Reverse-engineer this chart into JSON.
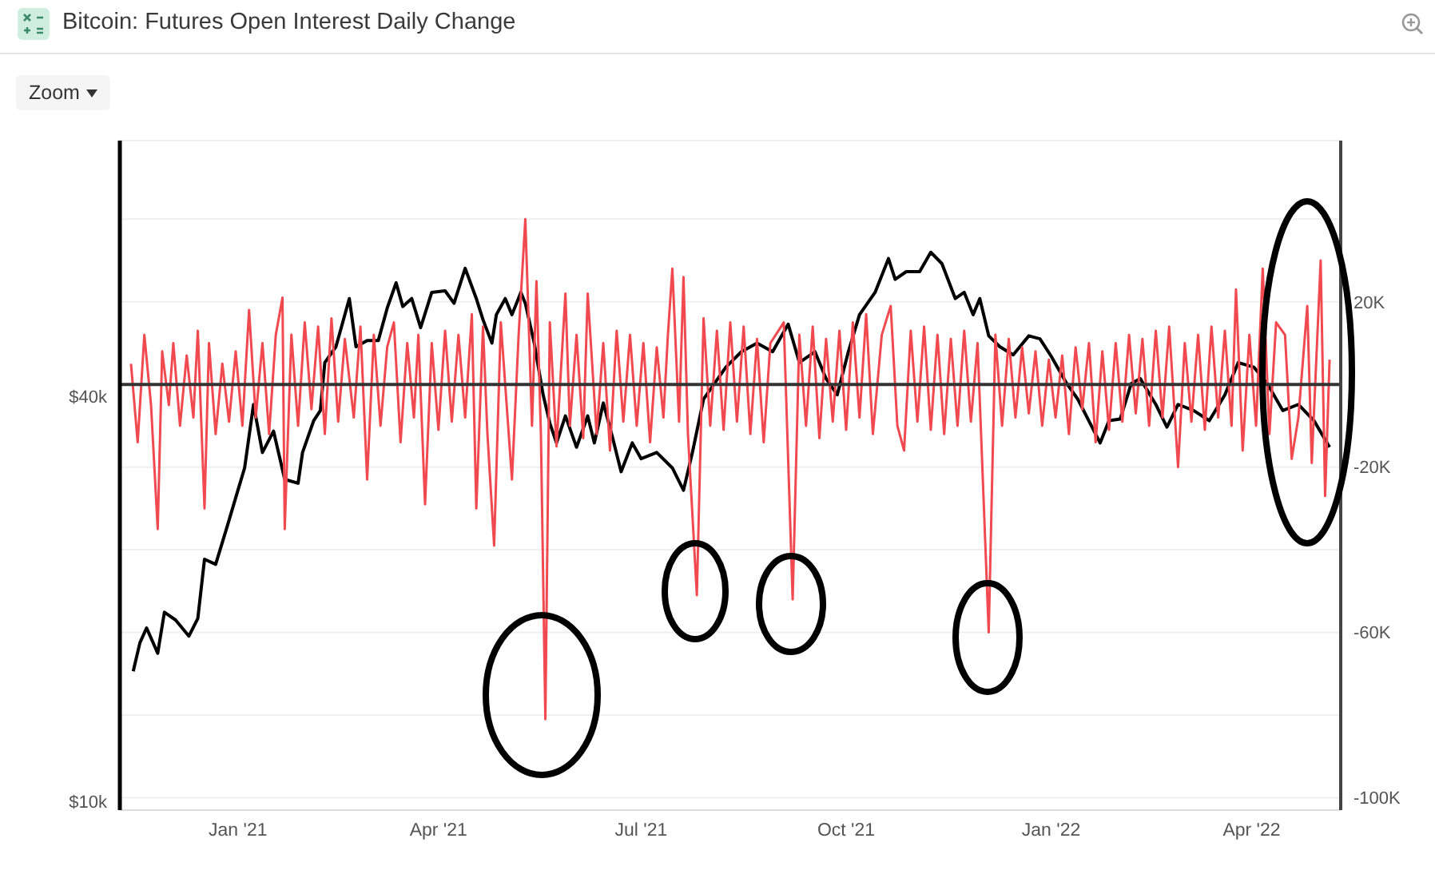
{
  "chart_data": {
    "type": "line",
    "title": "Bitcoin: Futures Open Interest Daily Change",
    "annotations": [
      "Zoom"
    ],
    "xlim": [
      "2020-11-09",
      "2022-05-11"
    ],
    "xticks": [
      {
        "value": "2021-01-01",
        "label": "Jan '21"
      },
      {
        "value": "2021-04-01",
        "label": "Apr '21"
      },
      {
        "value": "2021-07-01",
        "label": "Jul '21"
      },
      {
        "value": "2021-10-01",
        "label": "Oct '21"
      },
      {
        "value": "2022-01-01",
        "label": "Jan '22"
      },
      {
        "value": "2022-04-01",
        "label": "Apr '22"
      }
    ],
    "log": "y",
    "ylim": [
      9700,
      96000
    ],
    "yticks": [
      {
        "value": 10000,
        "label": "$10k"
      },
      {
        "value": 40000,
        "label": "$40k"
      }
    ],
    "y2lim": [
      -103000,
      59000
    ],
    "y2ticks": [
      {
        "value": 40000,
        "label": null
      },
      {
        "value": 20000,
        "label": "20K"
      },
      {
        "value": 0,
        "label": null
      },
      {
        "value": -20000,
        "label": "-20K"
      },
      {
        "value": -40000,
        "label": null
      },
      {
        "value": -60000,
        "label": "-60K"
      },
      {
        "value": -80000,
        "label": null
      },
      {
        "value": -100000,
        "label": "-100K"
      }
    ],
    "grid": "y",
    "marker": "none",
    "ref_lines": [
      {
        "axis": "y2",
        "value": 0,
        "color": "#333333"
      }
    ],
    "series": [
      {
        "color": "#000000",
        "x": [
          "2020-11-15",
          "2020-11-18",
          "2020-11-21",
          "2020-11-26",
          "2020-11-29",
          "2020-12-04",
          "2020-12-10",
          "2020-12-14",
          "2020-12-17",
          "2020-12-22",
          "2020-12-27",
          "2021-01-01",
          "2021-01-04",
          "2021-01-08",
          "2021-01-12",
          "2021-01-17",
          "2021-01-22",
          "2021-01-28",
          "2021-01-30",
          "2021-02-04",
          "2021-02-07",
          "2021-02-09",
          "2021-02-14",
          "2021-02-20",
          "2021-02-23",
          "2021-02-28",
          "2021-03-05",
          "2021-03-09",
          "2021-03-13",
          "2021-03-16",
          "2021-03-20",
          "2021-03-24",
          "2021-03-29",
          "2021-04-04",
          "2021-04-08",
          "2021-04-13",
          "2021-04-18",
          "2021-04-21",
          "2021-04-25",
          "2021-04-27",
          "2021-05-01",
          "2021-05-04",
          "2021-05-08",
          "2021-05-10",
          "2021-05-14",
          "2021-05-18",
          "2021-05-21",
          "2021-05-24",
          "2021-05-28",
          "2021-06-02",
          "2021-06-07",
          "2021-06-10",
          "2021-06-14",
          "2021-06-18",
          "2021-06-22",
          "2021-06-27",
          "2021-07-01",
          "2021-07-08",
          "2021-07-15",
          "2021-07-20",
          "2021-07-24",
          "2021-07-29",
          "2021-08-08",
          "2021-08-15",
          "2021-08-22",
          "2021-08-29",
          "2021-09-05",
          "2021-09-10",
          "2021-09-17",
          "2021-09-22",
          "2021-09-27",
          "2021-10-02",
          "2021-10-07",
          "2021-10-14",
          "2021-10-20",
          "2021-10-23",
          "2021-10-28",
          "2021-11-03",
          "2021-11-08",
          "2021-11-13",
          "2021-11-19",
          "2021-11-23",
          "2021-11-27",
          "2021-11-30",
          "2021-12-04",
          "2021-12-09",
          "2021-12-15",
          "2021-12-22",
          "2021-12-27",
          "2022-01-01",
          "2022-01-08",
          "2022-01-13",
          "2022-01-23",
          "2022-01-27",
          "2022-02-01",
          "2022-02-06",
          "2022-02-10",
          "2022-02-17",
          "2022-02-22",
          "2022-02-27",
          "2022-03-06",
          "2022-03-13",
          "2022-03-20",
          "2022-03-26",
          "2022-04-02",
          "2022-04-08",
          "2022-04-15",
          "2022-04-22",
          "2022-04-29",
          "2022-05-06"
        ],
        "values": [
          15600,
          17200,
          18100,
          16600,
          19100,
          18600,
          17600,
          18700,
          22900,
          22500,
          25500,
          29000,
          31300,
          38900,
          33000,
          35500,
          30100,
          29700,
          33000,
          36800,
          38100,
          44900,
          47400,
          55900,
          47400,
          48400,
          48400,
          54100,
          59000,
          54400,
          55900,
          50600,
          57100,
          57400,
          55000,
          62000,
          55900,
          52000,
          48000,
          52900,
          55900,
          52900,
          57100,
          55000,
          48000,
          40200,
          36500,
          34100,
          37400,
          33600,
          37400,
          34100,
          39100,
          34900,
          30900,
          34100,
          32300,
          33000,
          31300,
          29000,
          33000,
          39600,
          44200,
          46600,
          48000,
          46600,
          51200,
          44900,
          46600,
          42500,
          40200,
          46600,
          52900,
          57100,
          64100,
          59700,
          61300,
          61300,
          65500,
          63000,
          55900,
          57100,
          52900,
          55900,
          49200,
          47400,
          46100,
          49200,
          48700,
          45900,
          41800,
          39600,
          34100,
          36800,
          37000,
          41800,
          42500,
          38900,
          36000,
          38900,
          38100,
          36800,
          40200,
          44900,
          44200,
          41800,
          38100,
          38900,
          36800,
          33600
        ]
      },
      {
        "axis": "y2",
        "color": "#f0494f",
        "x": [
          "2020-11-14",
          "2020-11-17",
          "2020-11-20",
          "2020-11-23",
          "2020-11-26",
          "2020-11-28",
          "2020-12-01",
          "2020-12-03",
          "2020-12-06",
          "2020-12-09",
          "2020-12-12",
          "2020-12-14",
          "2020-12-17",
          "2020-12-19",
          "2020-12-22",
          "2020-12-25",
          "2020-12-28",
          "2020-12-31",
          "2021-01-03",
          "2021-01-06",
          "2021-01-09",
          "2021-01-12",
          "2021-01-15",
          "2021-01-18",
          "2021-01-21",
          "2021-01-22",
          "2021-01-25",
          "2021-01-28",
          "2021-01-31",
          "2021-02-03",
          "2021-02-06",
          "2021-02-09",
          "2021-02-12",
          "2021-02-15",
          "2021-02-18",
          "2021-02-22",
          "2021-02-25",
          "2021-02-28",
          "2021-03-03",
          "2021-03-06",
          "2021-03-09",
          "2021-03-12",
          "2021-03-15",
          "2021-03-18",
          "2021-03-21",
          "2021-03-23",
          "2021-03-26",
          "2021-03-29",
          "2021-04-01",
          "2021-04-04",
          "2021-04-07",
          "2021-04-10",
          "2021-04-13",
          "2021-04-16",
          "2021-04-18",
          "2021-04-21",
          "2021-04-23",
          "2021-04-26",
          "2021-04-29",
          "2021-05-04",
          "2021-05-07",
          "2021-05-10",
          "2021-05-13",
          "2021-05-15",
          "2021-05-17",
          "2021-05-19",
          "2021-05-21",
          "2021-05-24",
          "2021-05-28",
          "2021-05-30",
          "2021-06-02",
          "2021-06-05",
          "2021-06-07",
          "2021-06-11",
          "2021-06-14",
          "2021-06-17",
          "2021-06-20",
          "2021-06-23",
          "2021-06-26",
          "2021-06-29",
          "2021-07-02",
          "2021-07-05",
          "2021-07-08",
          "2021-07-11",
          "2021-07-13",
          "2021-07-15",
          "2021-07-18",
          "2021-07-20",
          "2021-07-22",
          "2021-07-26",
          "2021-07-29",
          "2021-08-01",
          "2021-08-04",
          "2021-08-07",
          "2021-08-10",
          "2021-08-13",
          "2021-08-16",
          "2021-08-19",
          "2021-08-22",
          "2021-08-25",
          "2021-08-28",
          "2021-09-03",
          "2021-09-07",
          "2021-09-10",
          "2021-09-13",
          "2021-09-16",
          "2021-09-19",
          "2021-09-22",
          "2021-09-25",
          "2021-09-28",
          "2021-10-01",
          "2021-10-04",
          "2021-10-07",
          "2021-10-10",
          "2021-10-13",
          "2021-10-17",
          "2021-10-21",
          "2021-10-24",
          "2021-10-27",
          "2021-10-30",
          "2021-11-02",
          "2021-11-05",
          "2021-11-08",
          "2021-11-11",
          "2021-11-14",
          "2021-11-17",
          "2021-11-20",
          "2021-11-23",
          "2021-11-26",
          "2021-11-29",
          "2021-12-04",
          "2021-12-07",
          "2021-12-10",
          "2021-12-13",
          "2021-12-16",
          "2021-12-19",
          "2021-12-22",
          "2021-12-25",
          "2021-12-28",
          "2021-12-31",
          "2022-01-03",
          "2022-01-06",
          "2022-01-09",
          "2022-01-12",
          "2022-01-15",
          "2022-01-18",
          "2022-01-21",
          "2022-01-24",
          "2022-01-27",
          "2022-01-30",
          "2022-02-02",
          "2022-02-05",
          "2022-02-08",
          "2022-02-11",
          "2022-02-14",
          "2022-02-17",
          "2022-02-20",
          "2022-02-23",
          "2022-02-27",
          "2022-03-02",
          "2022-03-05",
          "2022-03-08",
          "2022-03-11",
          "2022-03-14",
          "2022-03-17",
          "2022-03-20",
          "2022-03-23",
          "2022-03-25",
          "2022-03-28",
          "2022-03-31",
          "2022-04-03",
          "2022-04-06",
          "2022-04-09",
          "2022-04-12",
          "2022-04-16",
          "2022-04-19",
          "2022-04-22",
          "2022-04-26",
          "2022-04-28",
          "2022-05-02",
          "2022-05-04",
          "2022-05-06"
        ],
        "values": [
          5000,
          -14000,
          12000,
          -5000,
          -35000,
          8000,
          -5000,
          10000,
          -10000,
          7000,
          -8000,
          13000,
          -30000,
          10000,
          -12000,
          5000,
          -9000,
          8000,
          -10000,
          18000,
          -8000,
          10000,
          -12000,
          12000,
          21000,
          -35000,
          12000,
          -10000,
          15000,
          -6000,
          14000,
          -12000,
          16000,
          -9000,
          11000,
          -8000,
          14000,
          -23000,
          12000,
          -10000,
          9000,
          15000,
          -14000,
          10000,
          -8000,
          12000,
          -29000,
          10000,
          -11000,
          13000,
          -9000,
          12000,
          -8000,
          17000,
          -30000,
          14000,
          -12000,
          -39000,
          15000,
          -23000,
          12000,
          40000,
          -10000,
          25000,
          -12000,
          -81000,
          15000,
          -15000,
          22000,
          -10000,
          12000,
          -13000,
          22000,
          -12000,
          10000,
          -16000,
          13000,
          -9000,
          12000,
          -10000,
          10000,
          -14000,
          9000,
          -8000,
          12000,
          28000,
          -9000,
          26000,
          -12000,
          -51000,
          16000,
          -10000,
          13000,
          -11000,
          15000,
          -9000,
          14000,
          -12000,
          11000,
          -14000,
          10000,
          15000,
          -52000,
          12000,
          -10000,
          14000,
          -13000,
          11000,
          -9000,
          13000,
          -11000,
          15000,
          -8000,
          17000,
          -12000,
          12000,
          19000,
          -10000,
          -16000,
          13000,
          -9000,
          14000,
          -11000,
          12000,
          -12000,
          11000,
          -10000,
          13000,
          -9000,
          10000,
          -60000,
          12000,
          -10000,
          11000,
          -8000,
          9000,
          -7000,
          8000,
          -10000,
          6000,
          -8000,
          7000,
          -12000,
          9000,
          -6000,
          10000,
          -14000,
          8000,
          -11000,
          10000,
          -9000,
          12000,
          -7000,
          11000,
          -10000,
          13000,
          -8000,
          14000,
          -20000,
          10000,
          -9000,
          12000,
          -11000,
          14000,
          -8000,
          13000,
          -10000,
          23000,
          -16000,
          12000,
          -10000,
          28000,
          -12000,
          15000,
          12000,
          -18000,
          -8000,
          19000,
          -19000,
          30000,
          -27000,
          6000
        ]
      }
    ]
  }
}
